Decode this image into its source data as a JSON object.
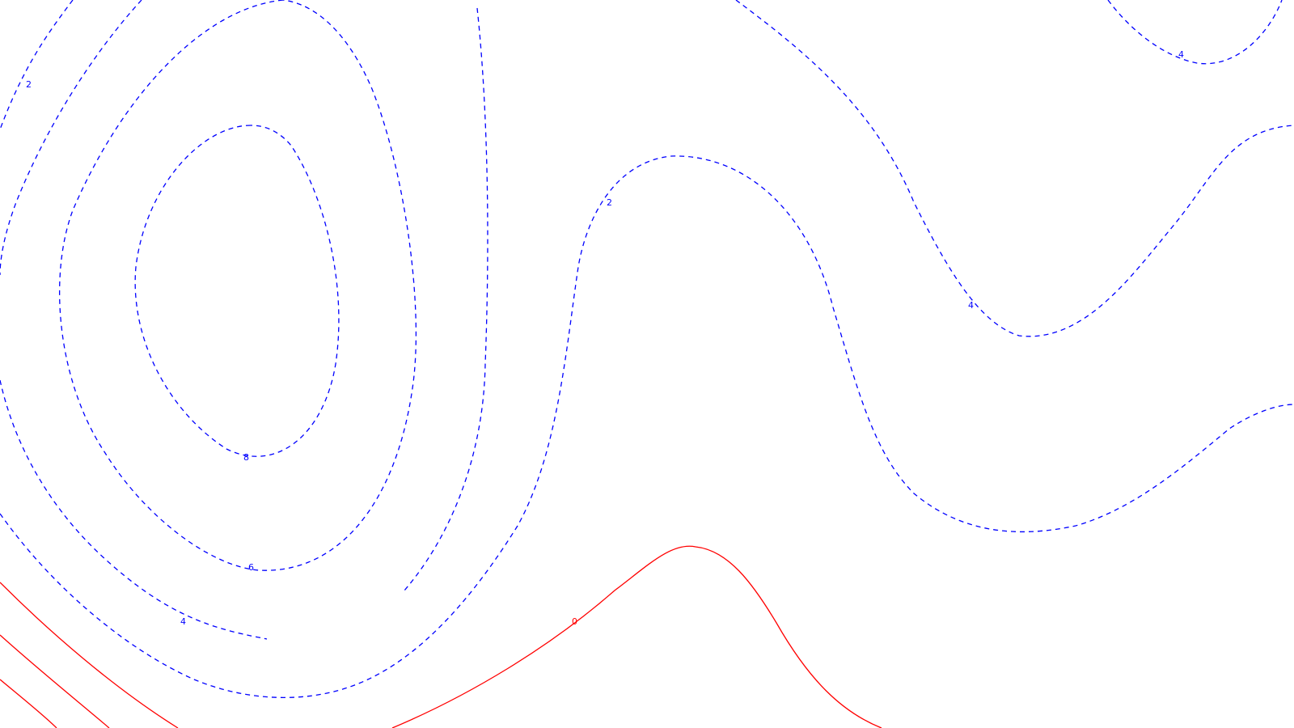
{
  "chart_data": {
    "type": "contour",
    "title": "",
    "xlabel": "",
    "ylabel": "",
    "grid": false,
    "legend": "none",
    "colors": {
      "negative_dashed": "#0000ff",
      "zero_solid": "#ff0000"
    },
    "levels": [
      {
        "value": "2",
        "style": "dashed",
        "color": "#0000ff"
      },
      {
        "value": "4",
        "style": "dashed",
        "color": "#0000ff"
      },
      {
        "value": "6",
        "style": "dashed",
        "color": "#0000ff"
      },
      {
        "value": "8",
        "style": "dashed",
        "color": "#0000ff"
      },
      {
        "value": "0",
        "style": "solid",
        "color": "#ff0000"
      }
    ]
  }
}
